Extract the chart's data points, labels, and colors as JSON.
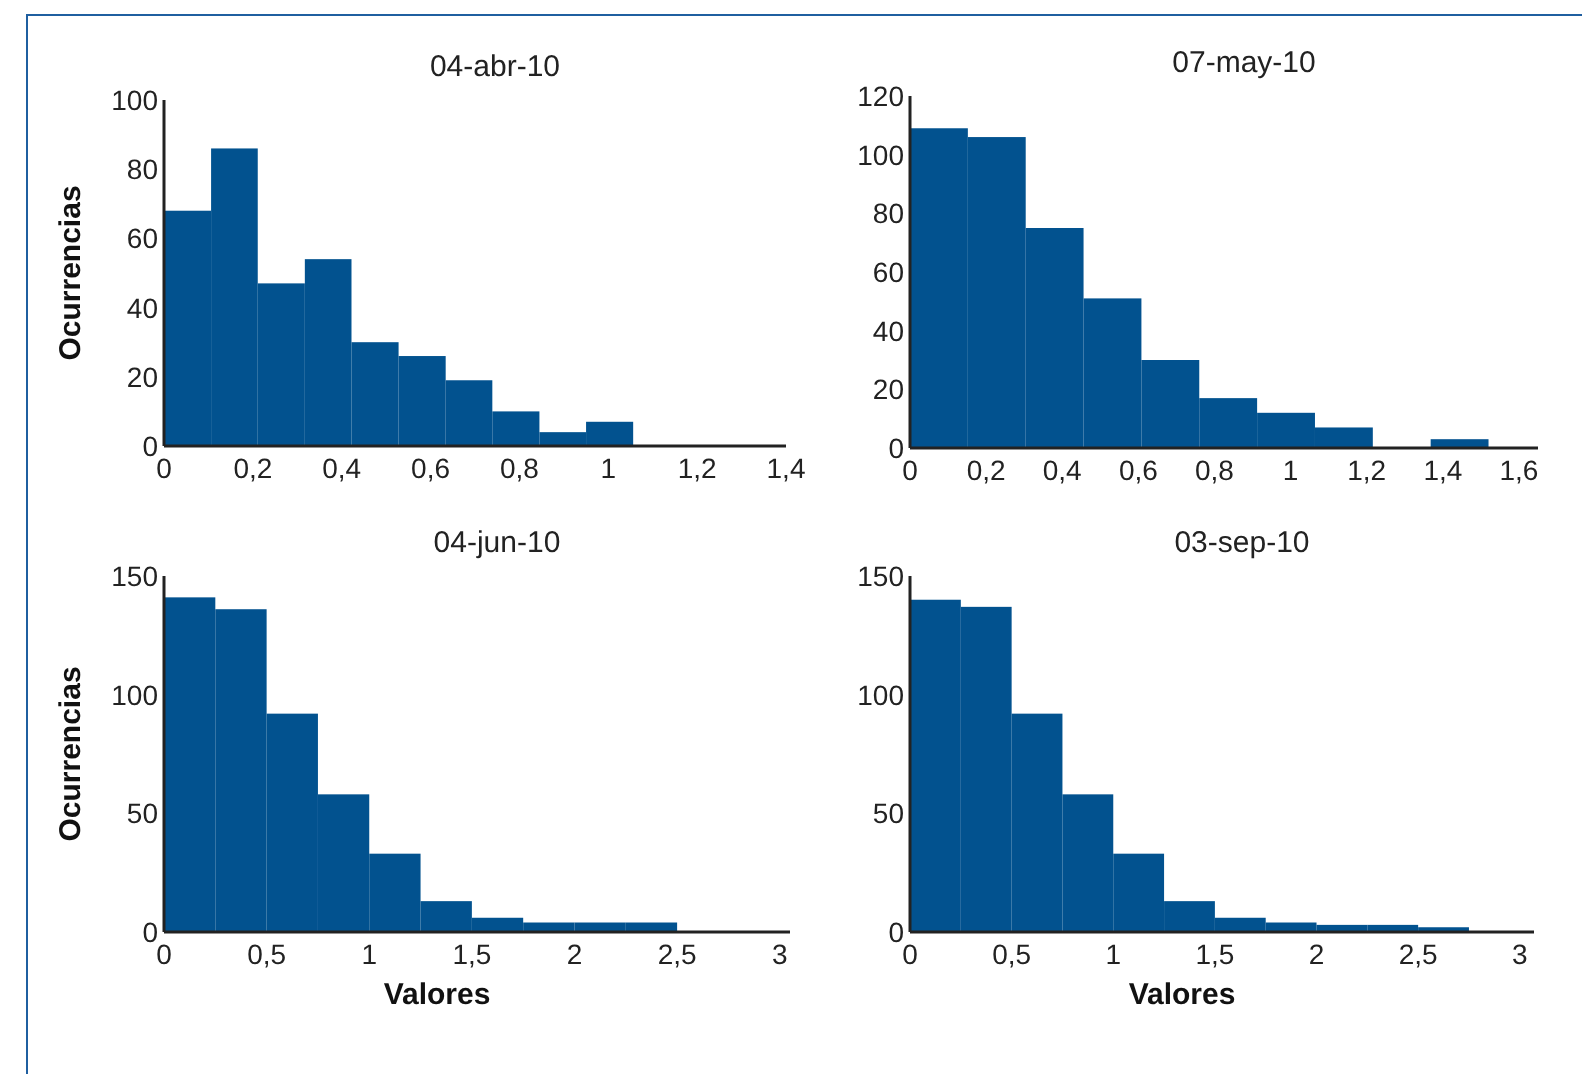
{
  "chart_data": [
    {
      "type": "histogram",
      "title": "04-abr-10",
      "ylabel": "Ocurrencias",
      "color": "#02528f",
      "bins": [
        0,
        0.106,
        0.211,
        0.317,
        0.422,
        0.528,
        0.634,
        0.739,
        0.845,
        0.95,
        1.056
      ],
      "values": [
        68,
        86,
        47,
        54,
        30,
        26,
        19,
        10,
        4,
        7
      ],
      "xlim": [
        0,
        1.4
      ],
      "ylim": [
        0,
        100
      ],
      "xticks": [
        0,
        {
          "value": 0.2,
          "label": "0,2"
        },
        {
          "value": 0.4,
          "label": "0,4"
        },
        {
          "value": 0.6,
          "label": "0,6"
        },
        {
          "value": 0.8,
          "label": "0,8"
        },
        1,
        {
          "value": 1.2,
          "label": "1,2"
        },
        {
          "value": 1.4,
          "label": "1,4"
        }
      ],
      "yticks": [
        0,
        20,
        40,
        60,
        80,
        100
      ],
      "grid": false
    },
    {
      "type": "histogram",
      "title": "07-may-10",
      "color": "#02528f",
      "bins": [
        0,
        0.152,
        0.304,
        0.456,
        0.608,
        0.76,
        0.912,
        1.064,
        1.216,
        1.368,
        1.52
      ],
      "values": [
        109,
        106,
        75,
        51,
        30,
        17,
        12,
        7,
        0,
        3
      ],
      "xlim": [
        0,
        1.65
      ],
      "ylim": [
        0,
        120
      ],
      "xticks": [
        0,
        {
          "value": 0.2,
          "label": "0,2"
        },
        {
          "value": 0.4,
          "label": "0,4"
        },
        {
          "value": 0.6,
          "label": "0,6"
        },
        {
          "value": 0.8,
          "label": "0,8"
        },
        1,
        {
          "value": 1.2,
          "label": "1,2"
        },
        {
          "value": 1.4,
          "label": "1,4"
        },
        {
          "value": 1.6,
          "label": "1,6"
        }
      ],
      "yticks": [
        0,
        20,
        40,
        60,
        80,
        100,
        120
      ],
      "grid": false
    },
    {
      "type": "histogram",
      "title": "04-jun-10",
      "ylabel": "Ocurrencias",
      "xlabel": "Valores",
      "color": "#02528f",
      "bins": [
        0,
        0.25,
        0.5,
        0.75,
        1,
        1.25,
        1.5,
        1.75,
        2,
        2.25,
        2.5
      ],
      "values": [
        141,
        136,
        92,
        58,
        33,
        13,
        6,
        4,
        4,
        4
      ],
      "xlim": [
        0,
        3.05
      ],
      "ylim": [
        0,
        150
      ],
      "xticks": [
        0,
        {
          "value": 0.5,
          "label": "0,5"
        },
        1,
        {
          "value": 1.5,
          "label": "1,5"
        },
        2,
        {
          "value": 2.5,
          "label": "2,5"
        },
        3
      ],
      "yticks": [
        0,
        50,
        100,
        150
      ],
      "grid": false
    },
    {
      "type": "histogram",
      "title": "03-sep-10",
      "xlabel": "Valores",
      "color": "#02528f",
      "bins": [
        0,
        0.25,
        0.5,
        0.75,
        1,
        1.25,
        1.5,
        1.75,
        2,
        2.25,
        2.5,
        2.75
      ],
      "values": [
        140,
        137,
        92,
        58,
        33,
        13,
        6,
        4,
        3,
        3,
        2
      ],
      "xlim": [
        0,
        3.07
      ],
      "ylim": [
        0,
        150
      ],
      "xticks": [
        0,
        {
          "value": 0.5,
          "label": "0,5"
        },
        1,
        {
          "value": 1.5,
          "label": "1,5"
        },
        2,
        {
          "value": 2.5,
          "label": "2,5"
        },
        3
      ],
      "yticks": [
        0,
        50,
        100,
        150
      ],
      "grid": false
    }
  ]
}
